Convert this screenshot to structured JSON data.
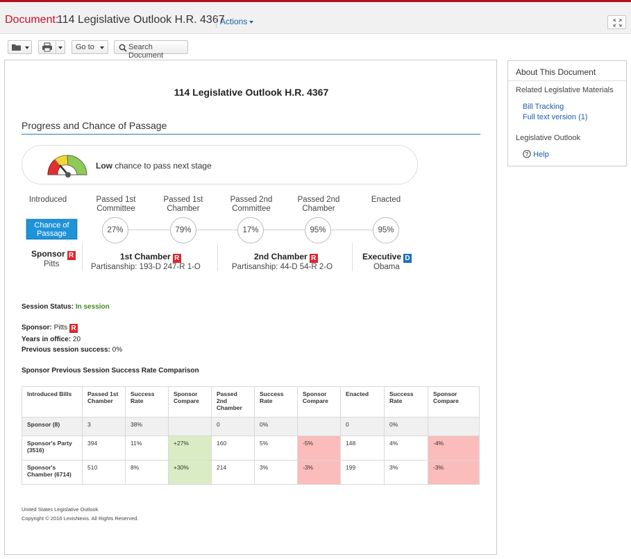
{
  "header": {
    "doc_label": "Document:",
    "doc_title": "114 Legislative Outlook H.R. 4367",
    "actions_label": "Actions",
    "expand_icon": "expand-icon"
  },
  "toolbar": {
    "folder_icon": "folder-icon",
    "print_icon": "print-icon",
    "goto_label": "Go to",
    "search_label": "Search Document"
  },
  "document": {
    "heading": "114 Legislative Outlook H.R. 4367",
    "section_title": "Progress and Chance of Passage",
    "chance": {
      "level": "Low",
      "text": " chance to pass next stage"
    },
    "stages": [
      {
        "label": "Introduced"
      },
      {
        "label": "Passed 1st Committee",
        "pct": "27%"
      },
      {
        "label": "Passed 1st Chamber",
        "pct": "79%"
      },
      {
        "label": "Passed 2nd Committee",
        "pct": "17%"
      },
      {
        "label": "Passed 2nd Chamber",
        "pct": "95%"
      },
      {
        "label": "Enacted",
        "pct": "95%"
      }
    ],
    "chance_badge": "Chance of Passage",
    "sponsor": {
      "heading": "Sponsor",
      "party": "R",
      "name": "Pitts"
    },
    "chamber1": {
      "heading": "1st Chamber",
      "party": "R",
      "partisanship": "Partisanship: 193-D 247-R 1-O"
    },
    "chamber2": {
      "heading": "2nd Chamber",
      "party": "R",
      "partisanship": "Partisanship: 44-D 54-R 2-O"
    },
    "executive": {
      "heading": "Executive",
      "party": "D",
      "name": "Obama"
    },
    "session_status": {
      "label": "Session Status:",
      "value": "In session"
    },
    "sponsor_info": {
      "sponsor_label": "Sponsor:",
      "sponsor_value": "Pitts",
      "party": "R",
      "years_label": "Years in office:",
      "years_value": "20",
      "prev_label": "Previous session success:",
      "prev_value": "0%"
    },
    "comparison_title": "Sponsor Previous Session Success Rate Comparison",
    "table": {
      "headers": [
        "Introduced Bills",
        "Passed 1st Chamber",
        "Success Rate",
        "Sponsor Compare",
        "Passed 2nd Chamber",
        "Success Rate",
        "Sponsor Compare",
        "Enacted",
        "Success Rate",
        "Sponsor Compare"
      ],
      "rows": [
        [
          "Sponsor (8)",
          "3",
          "38%",
          "",
          "0",
          "0%",
          "",
          "0",
          "0%",
          ""
        ],
        [
          "Sponsor's Party (3516)",
          "394",
          "11%",
          "+27%",
          "160",
          "5%",
          "-5%",
          "148",
          "4%",
          "-4%"
        ],
        [
          "Sponsor's Chamber (6714)",
          "510",
          "8%",
          "+30%",
          "214",
          "3%",
          "-3%",
          "199",
          "3%",
          "-3%"
        ]
      ]
    },
    "footer": {
      "line1": "United States Legislative Outlook",
      "line2": "Copyright © 2016 LexisNexis. All Rights Reserved."
    }
  },
  "sidebar": {
    "heading": "About This Document",
    "related_label": "Related Legislative Materials",
    "links": [
      "Bill Tracking",
      "Full text version (1)"
    ],
    "outlook_label": "Legislative Outlook",
    "help_label": "Help",
    "help_icon": "help-icon"
  },
  "colors": {
    "brand_red": "#c8102e",
    "link_blue": "#1a5fa8",
    "badge_blue": "#1f93d8",
    "positive": "#d9ecc3",
    "negative": "#fbbcbc"
  }
}
